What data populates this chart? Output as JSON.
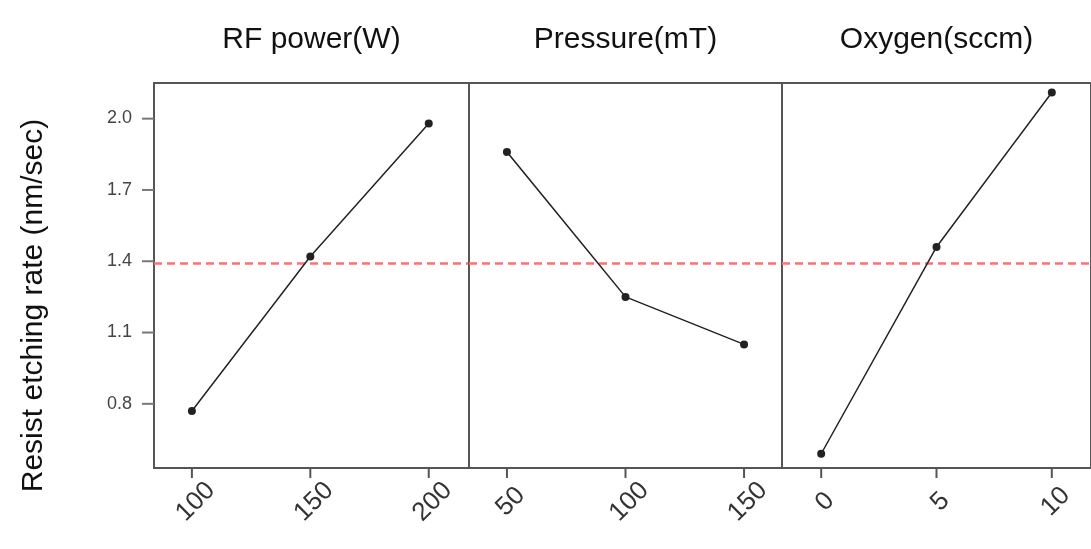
{
  "chart_data": [
    {
      "type": "line",
      "title": "RF power(W)",
      "ylabel": "Resist etching rate (nm/sec)",
      "x": [
        100,
        150,
        200
      ],
      "series": [
        {
          "color": "#222222",
          "values": [
            0.77,
            1.42,
            1.98
          ]
        }
      ],
      "xlim": [
        84,
        217
      ],
      "xticks": [
        100,
        150,
        200
      ],
      "ylim": [
        0.53,
        2.15
      ],
      "yticks": [
        {
          "value": 0.8,
          "label": "0.8"
        },
        {
          "value": 1.1,
          "label": "1.1"
        },
        {
          "value": 1.4,
          "label": "1.4"
        },
        {
          "value": 1.7,
          "label": "1.7"
        },
        {
          "value": 2.0,
          "label": "2.0"
        }
      ],
      "ref_lines": [
        {
          "axis": "y",
          "value": 1.39,
          "color": "#ff7070",
          "line_style": "dashed"
        }
      ],
      "marker": "circle",
      "grid": false
    },
    {
      "type": "line",
      "title": "Pressure(mT)",
      "x": [
        50,
        100,
        150
      ],
      "series": [
        {
          "color": "#222222",
          "values": [
            1.86,
            1.25,
            1.05
          ]
        }
      ],
      "xlim": [
        34,
        166
      ],
      "xticks": [
        50,
        100,
        150
      ],
      "ylim": [
        0.53,
        2.15
      ],
      "tick_labels": "x",
      "ref_lines": [
        {
          "axis": "y",
          "value": 1.39,
          "color": "#ff7070",
          "line_style": "dashed"
        }
      ],
      "marker": "circle",
      "grid": false
    },
    {
      "type": "line",
      "title": "Oxygen(sccm)",
      "x": [
        0,
        5,
        10
      ],
      "series": [
        {
          "color": "#222222",
          "values": [
            0.59,
            1.46,
            2.11
          ]
        }
      ],
      "xlim": [
        -1.7,
        11.7
      ],
      "xticks": [
        0,
        5,
        10
      ],
      "ylim": [
        0.53,
        2.15
      ],
      "tick_labels": "x",
      "ref_lines": [
        {
          "axis": "y",
          "value": 1.39,
          "color": "#ff7070",
          "line_style": "dashed"
        }
      ],
      "marker": "circle",
      "grid": false
    }
  ]
}
